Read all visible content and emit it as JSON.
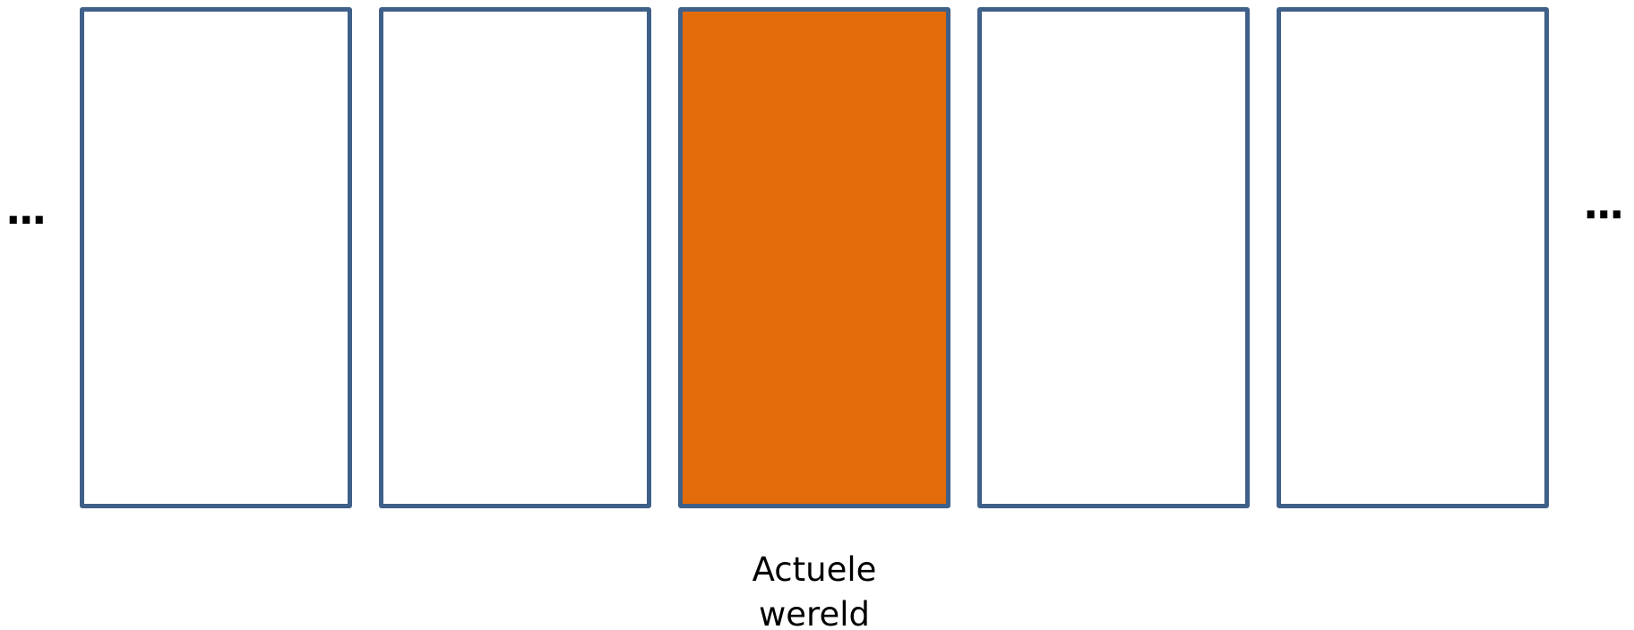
{
  "diagram": {
    "ellipsis_left": "...",
    "ellipsis_right": "...",
    "panels": [
      {
        "id": "world-1",
        "highlighted": false
      },
      {
        "id": "world-2",
        "highlighted": false
      },
      {
        "id": "world-3",
        "highlighted": true
      },
      {
        "id": "world-4",
        "highlighted": false
      },
      {
        "id": "world-5",
        "highlighted": false
      }
    ],
    "caption_line1": "Actuele",
    "caption_line2": "wereld",
    "colors": {
      "border": "#3f6089",
      "highlight": "#e36c0a",
      "empty": "#ffffff"
    }
  }
}
